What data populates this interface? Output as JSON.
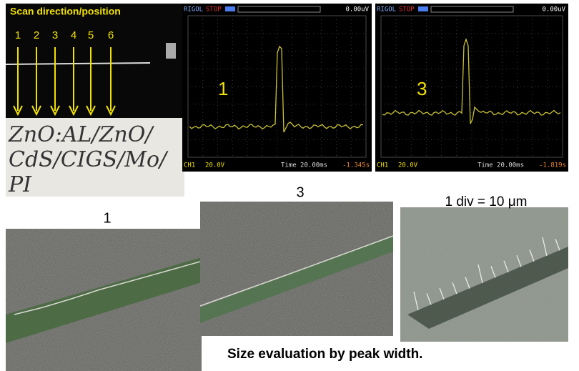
{
  "sample_photo": {
    "title": "Scan direction/position",
    "positions": [
      "1",
      "2",
      "3",
      "4",
      "5",
      "6"
    ],
    "handwriting": [
      "ZnO:AL/ZnO/",
      "CdS/CIGS/Mo/",
      "PI"
    ]
  },
  "scopes": [
    {
      "brand": "RIGOL",
      "state": "STOP",
      "trigger": "0.00uV",
      "label": "1",
      "channel": "CH1",
      "volts": "20.0V",
      "time": "Time 20.00ms",
      "offset": "-1.345s"
    },
    {
      "brand": "RIGOL",
      "state": "STOP",
      "trigger": "0.00uV",
      "label": "3",
      "channel": "CH1",
      "volts": "20.0V",
      "time": "Time 20.00ms",
      "offset": "-1.819s"
    }
  ],
  "micrographs": [
    {
      "label": "1"
    },
    {
      "label": "3"
    },
    {
      "label": "1 div = 10 μm"
    }
  ],
  "caption": "Size evaluation by peak width."
}
